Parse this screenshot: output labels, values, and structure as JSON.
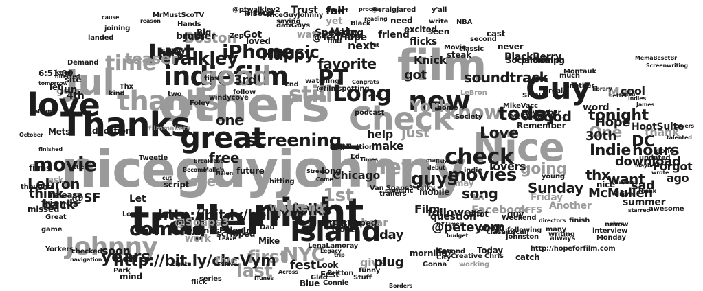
{
  "colors": {
    "dark": "#1c1c1c",
    "mid": "#6e6e6e",
    "light": "#9a9a9a"
  },
  "words": [
    {
      "t": "niceguyjohnny",
      "c": "light"
    },
    {
      "t": "others",
      "c": "light"
    },
    {
      "t": "trailer",
      "c": "dark"
    },
    {
      "t": "night",
      "c": "dark"
    },
    {
      "t": "film",
      "c": "light"
    },
    {
      "t": "Thanks",
      "c": "dark"
    },
    {
      "t": "Jul",
      "c": "light"
    },
    {
      "t": "love",
      "c": "dark"
    },
    {
      "t": "Check",
      "c": "light"
    },
    {
      "t": "Nice",
      "c": "light"
    },
    {
      "t": "Guy",
      "c": "dark"
    },
    {
      "t": "new",
      "c": "dark"
    },
    {
      "t": "great",
      "c": "dark"
    },
    {
      "t": "Island",
      "c": "dark"
    },
    {
      "t": "thanks",
      "c": "light"
    },
    {
      "t": "indiefilm",
      "c": "dark"
    },
    {
      "t": "good",
      "c": "light"
    },
    {
      "t": "Johnny",
      "c": "light"
    },
    {
      "t": "Long",
      "c": "dark"
    },
    {
      "t": "check",
      "c": "dark"
    },
    {
      "t": "know",
      "c": "light"
    },
    {
      "t": "today",
      "c": "dark"
    },
    {
      "t": "iPhone",
      "c": "dark"
    },
    {
      "t": "Just",
      "c": "dark"
    },
    {
      "t": "time",
      "c": "light"
    },
    {
      "t": "Walkley",
      "c": "dark"
    },
    {
      "t": "music",
      "c": "dark"
    },
    {
      "t": "screening",
      "c": "dark"
    },
    {
      "t": "New",
      "c": "light"
    },
    {
      "t": "coming",
      "c": "dark"
    },
    {
      "t": "movie",
      "c": "dark"
    },
    {
      "t": "1st",
      "c": "light"
    },
    {
      "t": "way",
      "c": "dark"
    },
    {
      "t": "movies",
      "c": "dark"
    },
    {
      "t": "guys",
      "c": "dark"
    },
    {
      "t": "tonight",
      "c": "dark"
    },
    {
      "t": "first",
      "c": "light"
    },
    {
      "t": "last",
      "c": "light"
    },
    {
      "t": "NYC",
      "c": "light"
    },
    {
      "t": "Happy",
      "c": "dark"
    },
    {
      "t": "still",
      "c": "light"
    },
    {
      "t": "PT",
      "c": "dark"
    },
    {
      "t": "favorite",
      "c": "dark"
    },
    {
      "t": "Hey",
      "c": "light"
    },
    {
      "t": "One",
      "c": "light"
    },
    {
      "t": "DC",
      "c": "dark"
    },
    {
      "t": "York",
      "c": "light"
    },
    {
      "t": "Indie",
      "c": "dark"
    },
    {
      "t": "hours",
      "c": "dark"
    },
    {
      "t": "thx",
      "c": "dark"
    },
    {
      "t": "http://bit.ly/chcVym",
      "c": "dark"
    },
    {
      "t": "http://bit.ly/bel4YW",
      "c": "dark"
    },
    {
      "t": "soundtrack",
      "c": "dark"
    },
    {
      "t": "years",
      "c": "dark"
    },
    {
      "t": "teaser",
      "c": "light"
    },
    {
      "t": "Boston",
      "c": "light"
    },
    {
      "t": "folks",
      "c": "dark"
    },
    {
      "t": "song",
      "c": "dark"
    },
    {
      "t": "Love",
      "c": "dark"
    },
    {
      "t": "going",
      "c": "light"
    },
    {
      "t": "see",
      "c": "light"
    },
    {
      "t": "Lebron",
      "c": "dark"
    },
    {
      "t": "think",
      "c": "dark"
    },
    {
      "t": "back",
      "c": "dark"
    },
    {
      "t": "free",
      "c": "dark"
    },
    {
      "t": "one",
      "c": "dark"
    },
    {
      "t": "help",
      "c": "dark"
    },
    {
      "t": "make",
      "c": "dark"
    },
    {
      "t": "download",
      "c": "dark"
    },
    {
      "t": "Good",
      "c": "dark"
    },
    {
      "t": "hear",
      "c": "light"
    },
    {
      "t": "day",
      "c": "dark"
    },
    {
      "t": "fest",
      "c": "dark"
    },
    {
      "t": "five",
      "c": "light"
    },
    {
      "t": "soon",
      "c": "dark"
    },
    {
      "t": "give",
      "c": "light"
    },
    {
      "t": "plug",
      "c": "dark"
    },
    {
      "t": "got",
      "c": "dark"
    },
    {
      "t": "next",
      "c": "dark"
    },
    {
      "t": "Mac",
      "c": "light"
    },
    {
      "t": "cool",
      "c": "dark"
    },
    {
      "t": "Sunday",
      "c": "dark"
    },
    {
      "t": "Film",
      "c": "dark"
    },
    {
      "t": "McMullen",
      "c": "dark"
    },
    {
      "t": "want",
      "c": "dark"
    },
    {
      "t": "ago",
      "c": "dark"
    },
    {
      "t": "sad",
      "c": "dark"
    },
    {
      "t": "just",
      "c": "light"
    },
    {
      "t": "gonna",
      "c": "light"
    },
    {
      "t": "3rd",
      "c": "dark"
    },
    {
      "t": "4th",
      "c": "dark"
    },
    {
      "t": "30th",
      "c": "dark"
    },
    {
      "t": "Hope",
      "c": "dark"
    },
    {
      "t": "@peteyorn",
      "c": "dark"
    },
    {
      "t": "@Soaps3",
      "c": "light"
    },
    {
      "t": "@SF",
      "c": "dark"
    },
    {
      "t": "Facebook",
      "c": "light"
    },
    {
      "t": "Friday",
      "c": "light"
    },
    {
      "t": "Forgot",
      "c": "dark"
    },
    {
      "t": "followers",
      "c": "dark"
    },
    {
      "t": "weekend",
      "c": "light"
    },
    {
      "t": "Chicago",
      "c": "dark"
    },
    {
      "t": "http://hopeforfilm.com",
      "c": "dark"
    },
    {
      "t": "work",
      "c": "light"
    },
    {
      "t": "Trust",
      "c": "dark"
    },
    {
      "t": "fall",
      "c": "dark"
    },
    {
      "t": "thank",
      "c": "light"
    },
    {
      "t": "Just",
      "c": "dark"
    },
    {
      "t": "watch",
      "c": "light"
    },
    {
      "t": "lovers",
      "c": "dark"
    },
    {
      "t": "summer",
      "c": "dark"
    },
    {
      "t": "Another",
      "c": "light"
    },
    {
      "t": "word",
      "c": "dark"
    },
    {
      "t": "Speaking",
      "c": "dark"
    },
    {
      "t": "Society",
      "c": "dark"
    },
    {
      "t": "HootSuite",
      "c": "dark"
    },
    {
      "t": "flicks",
      "c": "dark"
    },
    {
      "t": "friend",
      "c": "dark"
    },
    {
      "t": "brother",
      "c": "dark"
    },
    {
      "t": "excited",
      "c": "dark"
    },
    {
      "t": "seen",
      "c": "dark"
    },
    {
      "t": "LeBron",
      "c": "light"
    },
    {
      "t": "BlackBerry",
      "c": "dark"
    },
    {
      "t": "Make",
      "c": "dark"
    },
    {
      "t": "yet",
      "c": "light"
    },
    {
      "t": "@TedHope",
      "c": "dark"
    },
    {
      "t": "loved",
      "c": "dark"
    },
    {
      "t": "Got",
      "c": "dark"
    },
    {
      "t": "Jun",
      "c": "dark"
    },
    {
      "t": "Thx",
      "c": "dark"
    },
    {
      "t": "kind",
      "c": "dark"
    },
    {
      "t": "Mets",
      "c": "dark"
    },
    {
      "t": "Education",
      "c": "dark"
    },
    {
      "t": "filmmakers",
      "c": "light"
    },
    {
      "t": "let",
      "c": "dark"
    },
    {
      "t": "site",
      "c": "dark"
    },
    {
      "t": "keep",
      "c": "dark"
    },
    {
      "t": "friends",
      "c": "dark"
    },
    {
      "t": "release",
      "c": "dark"
    },
    {
      "t": "missed",
      "c": "dark"
    },
    {
      "t": "ask",
      "c": "light"
    },
    {
      "t": "films",
      "c": "dark"
    },
    {
      "t": "Let",
      "c": "dark"
    },
    {
      "t": "script",
      "c": "dark"
    },
    {
      "t": "future",
      "c": "dark"
    },
    {
      "t": "long",
      "c": "dark"
    },
    {
      "t": "close",
      "c": "dark"
    },
    {
      "t": "mobile",
      "c": "dark"
    },
    {
      "t": "question",
      "c": "dark"
    },
    {
      "t": "morning",
      "c": "dark"
    },
    {
      "t": "Blue",
      "c": "dark"
    },
    {
      "t": "Fest",
      "c": "dark"
    },
    {
      "t": "Look",
      "c": "dark"
    },
    {
      "t": "Mike",
      "c": "dark"
    },
    {
      "t": "catch",
      "c": "dark"
    },
    {
      "t": "nice",
      "c": "dark"
    },
    {
      "t": "Remember",
      "c": "dark"
    },
    {
      "t": "shout",
      "c": "dark"
    },
    {
      "t": "cast",
      "c": "dark"
    },
    {
      "t": "need",
      "c": "dark"
    },
    {
      "t": "Knick",
      "c": "dark"
    },
    {
      "t": "may",
      "c": "light"
    },
    {
      "t": "LA",
      "c": "light"
    },
    {
      "t": "hey",
      "c": "dark"
    },
    {
      "t": "SFFS",
      "c": "light"
    },
    {
      "t": "guy",
      "c": "dark"
    },
    {
      "t": "Today",
      "c": "dark"
    },
    {
      "t": "shot",
      "c": "dark"
    },
    {
      "t": "photo",
      "c": "dark"
    },
    {
      "t": "working",
      "c": "light"
    },
    {
      "t": "following",
      "c": "dark"
    },
    {
      "t": "Van Soaps3",
      "c": "dark"
    },
    {
      "t": "@scripped",
      "c": "dark"
    },
    {
      "t": "@JamesFoleyJr",
      "c": "dark"
    },
    {
      "t": "scripped",
      "c": "dark"
    },
    {
      "t": "Dad",
      "c": "dark"
    },
    {
      "t": "LenaLamoray",
      "c": "dark"
    },
    {
      "t": "Britton",
      "c": "dark"
    },
    {
      "t": "Connie",
      "c": "dark"
    },
    {
      "t": "Gonna",
      "c": "dark"
    },
    {
      "t": "City",
      "c": "dark"
    },
    {
      "t": "Second",
      "c": "dark"
    },
    {
      "t": "Creative Chris",
      "c": "dark"
    },
    {
      "t": "classics",
      "c": "dark"
    },
    {
      "t": "Johnston",
      "c": "dark"
    },
    {
      "t": "American",
      "c": "dark"
    },
    {
      "t": "young",
      "c": "dark"
    },
    {
      "t": "home",
      "c": "dark"
    },
    {
      "t": "MikeVacc",
      "c": "dark"
    },
    {
      "t": "McGlone",
      "c": "dark"
    },
    {
      "t": "November",
      "c": "dark"
    },
    {
      "t": "SocialOomph",
      "c": "dark"
    },
    {
      "t": "phone",
      "c": "dark"
    },
    {
      "t": "talking",
      "c": "dark"
    },
    {
      "t": "real",
      "c": "dark"
    },
    {
      "t": "much",
      "c": "dark"
    },
    {
      "t": "never",
      "c": "dark"
    },
    {
      "t": "steak",
      "c": "dark"
    },
    {
      "t": "tips",
      "c": "dark"
    },
    {
      "t": "two",
      "c": "dark"
    },
    {
      "t": "Foley",
      "c": "dark"
    },
    {
      "t": "windycove",
      "c": "dark"
    },
    {
      "t": "follow",
      "c": "dark"
    },
    {
      "t": "2nd",
      "c": "dark"
    },
    {
      "t": "watching",
      "c": "dark"
    },
    {
      "t": "@filmspotting",
      "c": "dark"
    },
    {
      "t": "Congrats",
      "c": "dark"
    },
    {
      "t": "podcast",
      "c": "dark"
    },
    {
      "t": "ever",
      "c": "dark"
    },
    {
      "t": "@ptwalkley2",
      "c": "dark"
    },
    {
      "t": "Big",
      "c": "dark"
    },
    {
      "t": "artwork",
      "c": "dark"
    },
    {
      "t": "NiceGuyJohnny",
      "c": "dark"
    },
    {
      "t": "Zep",
      "c": "dark"
    },
    {
      "t": "find",
      "c": "dark"
    },
    {
      "t": "spot",
      "c": "dark"
    },
    {
      "t": "hit",
      "c": "dark"
    },
    {
      "t": "reading",
      "c": "dark"
    },
    {
      "t": "process",
      "c": "dark"
    },
    {
      "t": "Smart",
      "c": "dark"
    },
    {
      "t": "Black",
      "c": "dark"
    },
    {
      "t": "@craigjared",
      "c": "dark"
    },
    {
      "t": "landed",
      "c": "dark"
    },
    {
      "t": "joining",
      "c": "dark"
    },
    {
      "t": "Hands",
      "c": "dark"
    },
    {
      "t": "Follow",
      "c": "dark"
    },
    {
      "t": "Demand",
      "c": "dark"
    },
    {
      "t": "6:51:06",
      "c": "dark"
    },
    {
      "t": "directed",
      "c": "dark"
    },
    {
      "t": "tomorrow",
      "c": "dark"
    },
    {
      "t": "finished",
      "c": "dark"
    },
    {
      "t": "album",
      "c": "dark"
    },
    {
      "t": "October",
      "c": "dark"
    },
    {
      "t": "thoughts",
      "c": "dark"
    },
    {
      "t": "Great",
      "c": "dark"
    },
    {
      "t": "game",
      "c": "dark"
    },
    {
      "t": "Yorkers",
      "c": "dark"
    },
    {
      "t": "checked",
      "c": "dark"
    },
    {
      "t": "Park",
      "c": "dark"
    },
    {
      "t": "mind",
      "c": "dark"
    },
    {
      "t": "Lights",
      "c": "dark"
    },
    {
      "t": "ESPN",
      "c": "dark"
    },
    {
      "t": "flick",
      "c": "dark"
    },
    {
      "t": "series",
      "c": "dark"
    },
    {
      "t": "iTunes",
      "c": "dark"
    },
    {
      "t": "Across",
      "c": "dark"
    },
    {
      "t": "funny",
      "c": "dark"
    },
    {
      "t": "Glad",
      "c": "dark"
    },
    {
      "t": "Borders",
      "c": "dark"
    },
    {
      "t": "Stuff",
      "c": "dark"
    },
    {
      "t": "Legacy",
      "c": "dark"
    },
    {
      "t": "Halen",
      "c": "dark"
    },
    {
      "t": "Malle's",
      "c": "dark"
    },
    {
      "t": "Become",
      "c": "dark"
    },
    {
      "t": "breakfast",
      "c": "dark"
    },
    {
      "t": "Tweetie",
      "c": "dark"
    },
    {
      "t": "little",
      "c": "dark"
    },
    {
      "t": "Louis",
      "c": "dark"
    },
    {
      "t": "Leave",
      "c": "dark"
    },
    {
      "t": "finish",
      "c": "dark"
    },
    {
      "t": "news",
      "c": "dark"
    },
    {
      "t": "interview",
      "c": "dark"
    },
    {
      "t": "Monday",
      "c": "dark"
    },
    {
      "t": "always",
      "c": "dark"
    },
    {
      "t": "writing",
      "c": "dark"
    },
    {
      "t": "many",
      "c": "dark"
    },
    {
      "t": "directors",
      "c": "dark"
    },
    {
      "t": "Weekend",
      "c": "dark"
    },
    {
      "t": "show",
      "c": "dark"
    },
    {
      "t": "starred",
      "c": "dark"
    },
    {
      "t": "drive",
      "c": "dark"
    },
    {
      "t": "Thank",
      "c": "dark"
    },
    {
      "t": "makers",
      "c": "dark"
    },
    {
      "t": "wrote",
      "c": "dark"
    },
    {
      "t": "Maybe",
      "c": "dark"
    },
    {
      "t": "updated",
      "c": "dark"
    },
    {
      "t": "done",
      "c": "dark"
    },
    {
      "t": "awesome",
      "c": "dark"
    },
    {
      "t": "talented",
      "c": "dark"
    },
    {
      "t": "Lovers",
      "c": "dark"
    },
    {
      "t": "James",
      "c": "dark"
    },
    {
      "t": "better",
      "c": "dark"
    },
    {
      "t": "Irish",
      "c": "dark"
    },
    {
      "t": "indies",
      "c": "dark"
    },
    {
      "t": "library",
      "c": "dark"
    },
    {
      "t": "another",
      "c": "dark"
    },
    {
      "t": "Screenwriting",
      "c": "dark"
    },
    {
      "t": "Montauk",
      "c": "dark"
    },
    {
      "t": "MemaBesetBr",
      "c": "dark"
    },
    {
      "t": "cause",
      "c": "dark"
    },
    {
      "t": "reason",
      "c": "dark"
    },
    {
      "t": "MrMustScoTV",
      "c": "dark"
    },
    {
      "t": "TriBeCa",
      "c": "dark"
    },
    {
      "t": "saying",
      "c": "dark"
    },
    {
      "t": "date",
      "c": "dark"
    },
    {
      "t": "Guys",
      "c": "dark"
    },
    {
      "t": "y'all",
      "c": "dark"
    },
    {
      "t": "write",
      "c": "dark"
    },
    {
      "t": "NBA",
      "c": "dark"
    },
    {
      "t": "second",
      "c": "dark"
    },
    {
      "t": "Movie",
      "c": "dark"
    },
    {
      "t": "classic",
      "c": "dark"
    },
    {
      "t": "man",
      "c": "dark"
    },
    {
      "t": "debut",
      "c": "dark"
    },
    {
      "t": "listened",
      "c": "dark"
    },
    {
      "t": "indie",
      "c": "dark"
    },
    {
      "t": "talky",
      "c": "dark"
    },
    {
      "t": "specific",
      "c": "dark"
    },
    {
      "t": "budget",
      "c": "dark"
    },
    {
      "t": "NYTimes",
      "c": "dark"
    },
    {
      "t": "trailers",
      "c": "dark"
    },
    {
      "t": "Times",
      "c": "dark"
    },
    {
      "t": "Ed",
      "c": "dark"
    },
    {
      "t": "Come",
      "c": "dark"
    },
    {
      "t": "Street",
      "c": "dark"
    },
    {
      "t": "hitting",
      "c": "dark"
    },
    {
      "t": "trip",
      "c": "dark"
    },
    {
      "t": "navigation",
      "c": "dark"
    },
    {
      "t": "cut",
      "c": "dark"
    },
    {
      "t": "viewing",
      "c": "dark"
    },
    {
      "t": "distribution",
      "c": "dark"
    },
    {
      "t": "Night",
      "c": "dark"
    },
    {
      "t": "option",
      "c": "dark"
    },
    {
      "t": "Oct",
      "c": "dark"
    },
    {
      "t": "retweet",
      "c": "dark"
    },
    {
      "t": "waiting",
      "c": "dark"
    },
    {
      "t": "old",
      "c": "dark"
    },
    {
      "t": "winner",
      "c": "dark"
    },
    {
      "t": "Help",
      "c": "dark"
    },
    {
      "t": "comes",
      "c": "dark"
    },
    {
      "t": "kid",
      "c": "dark"
    },
    {
      "t": "List",
      "c": "dark"
    },
    {
      "t": "Red",
      "c": "dark"
    },
    {
      "t": "Read",
      "c": "dark"
    },
    {
      "t": "heading",
      "c": "dark"
    }
  ]
}
